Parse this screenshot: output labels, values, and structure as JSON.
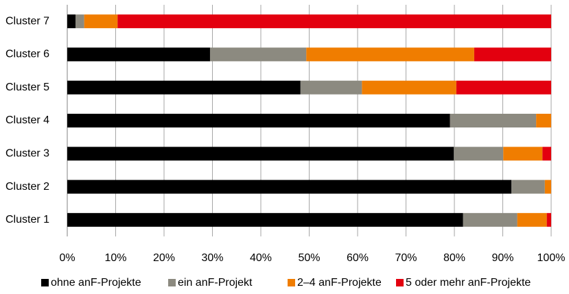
{
  "chart_data": {
    "type": "bar",
    "orientation": "horizontal",
    "stacked": true,
    "categories": [
      "Cluster 1",
      "Cluster 2",
      "Cluster 3",
      "Cluster 4",
      "Cluster 5",
      "Cluster 6",
      "Cluster 7"
    ],
    "series": [
      {
        "name": "ohne anF-Projekte",
        "color": "#000000",
        "values": [
          81.8,
          91.8,
          79.9,
          79.1,
          48.2,
          29.5,
          1.7
        ]
      },
      {
        "name": "ein anF-Projekt",
        "color": "#8c8a80",
        "values": [
          11.2,
          6.9,
          10.2,
          17.8,
          12.7,
          19.9,
          1.8
        ]
      },
      {
        "name": "2–4 anF-Projekte",
        "color": "#f07d00",
        "values": [
          6.1,
          1.3,
          8.1,
          3.1,
          19.5,
          34.7,
          6.9
        ]
      },
      {
        "name": "5 oder mehr anF-Projekte",
        "color": "#e3000f",
        "values": [
          0.9,
          0,
          1.8,
          0,
          19.6,
          15.9,
          89.6
        ]
      }
    ],
    "xlim": [
      0,
      100
    ],
    "xticks": [
      {
        "value": 0,
        "label": "0%"
      },
      {
        "value": 10,
        "label": "10%"
      },
      {
        "value": 20,
        "label": "20%"
      },
      {
        "value": 30,
        "label": "30%"
      },
      {
        "value": 40,
        "label": "40%"
      },
      {
        "value": 50,
        "label": "50%"
      },
      {
        "value": 60,
        "label": "60%"
      },
      {
        "value": 70,
        "label": "70%"
      },
      {
        "value": 80,
        "label": "80%"
      },
      {
        "value": 90,
        "label": "90%"
      },
      {
        "value": 100,
        "label": "100%"
      }
    ],
    "grid": true,
    "legend": "bottom"
  }
}
